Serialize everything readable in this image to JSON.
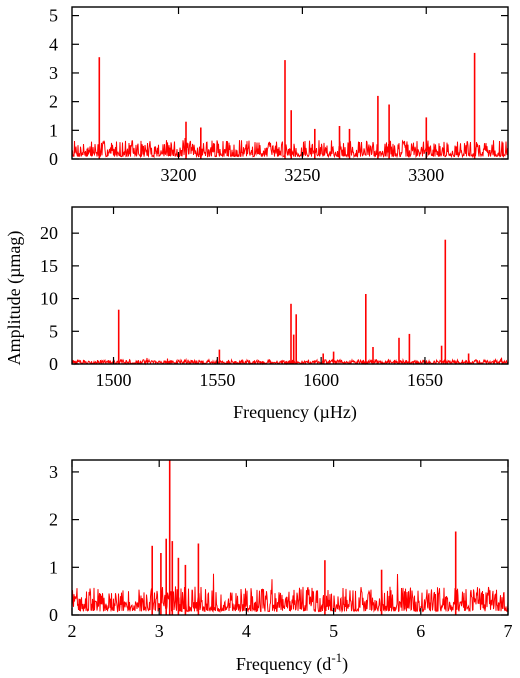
{
  "colors": {
    "series": "#ff0000",
    "axis": "#000000",
    "background": "#ffffff"
  },
  "ylabel_shared": "Amplitude (µmag)",
  "chart_data": [
    {
      "type": "line",
      "id": "panel-top",
      "xlabel": "",
      "xlim": [
        3157,
        3333
      ],
      "ylim": [
        0,
        5.3
      ],
      "xticks": [
        3200,
        3250,
        3300
      ],
      "yticks": [
        0,
        1,
        2,
        3,
        4,
        5
      ],
      "noise_level": 0.55,
      "grid": false,
      "peaks": [
        {
          "x": 3168.0,
          "y": 3.55
        },
        {
          "x": 3203.0,
          "y": 1.3
        },
        {
          "x": 3209.0,
          "y": 1.1
        },
        {
          "x": 3243.0,
          "y": 3.45
        },
        {
          "x": 3245.5,
          "y": 1.7
        },
        {
          "x": 3255.0,
          "y": 1.05
        },
        {
          "x": 3265.0,
          "y": 1.15
        },
        {
          "x": 3269.0,
          "y": 1.05
        },
        {
          "x": 3280.5,
          "y": 2.2
        },
        {
          "x": 3285.0,
          "y": 1.9
        },
        {
          "x": 3300.0,
          "y": 1.45
        },
        {
          "x": 3319.5,
          "y": 3.7
        }
      ]
    },
    {
      "type": "line",
      "id": "panel-middle",
      "xlabel": "Frequency (µHz)",
      "xlim": [
        1480,
        1690
      ],
      "ylim": [
        0,
        24
      ],
      "xticks": [
        1500,
        1550,
        1600,
        1650
      ],
      "yticks": [
        0,
        5,
        10,
        15,
        20
      ],
      "noise_level": 0.55,
      "grid": false,
      "peaks": [
        {
          "x": 1502.5,
          "y": 8.3
        },
        {
          "x": 1551.0,
          "y": 2.2
        },
        {
          "x": 1585.5,
          "y": 9.2
        },
        {
          "x": 1586.8,
          "y": 4.5
        },
        {
          "x": 1588.0,
          "y": 7.6
        },
        {
          "x": 1601.0,
          "y": 1.6
        },
        {
          "x": 1606.0,
          "y": 1.9
        },
        {
          "x": 1621.5,
          "y": 10.7
        },
        {
          "x": 1625.0,
          "y": 2.6
        },
        {
          "x": 1637.5,
          "y": 4.0
        },
        {
          "x": 1642.5,
          "y": 4.6
        },
        {
          "x": 1658.0,
          "y": 2.8
        },
        {
          "x": 1659.8,
          "y": 19.0
        },
        {
          "x": 1671.0,
          "y": 1.6
        }
      ]
    },
    {
      "type": "line",
      "id": "panel-bottom",
      "xlabel": "Frequency (d-1)",
      "xlim": [
        2,
        7
      ],
      "ylim": [
        0,
        3.25
      ],
      "xticks": [
        2,
        3,
        4,
        5,
        6,
        7
      ],
      "yticks": [
        0,
        1,
        2,
        3
      ],
      "noise_level": 0.5,
      "grid": false,
      "peaks": [
        {
          "x": 2.92,
          "y": 1.45
        },
        {
          "x": 3.02,
          "y": 1.3
        },
        {
          "x": 3.08,
          "y": 1.6
        },
        {
          "x": 3.12,
          "y": 3.25
        },
        {
          "x": 3.15,
          "y": 1.55
        },
        {
          "x": 3.22,
          "y": 1.2
        },
        {
          "x": 3.45,
          "y": 1.5
        },
        {
          "x": 3.3,
          "y": 1.05
        },
        {
          "x": 4.9,
          "y": 1.15
        },
        {
          "x": 5.55,
          "y": 0.95
        },
        {
          "x": 6.4,
          "y": 1.75
        }
      ]
    }
  ]
}
